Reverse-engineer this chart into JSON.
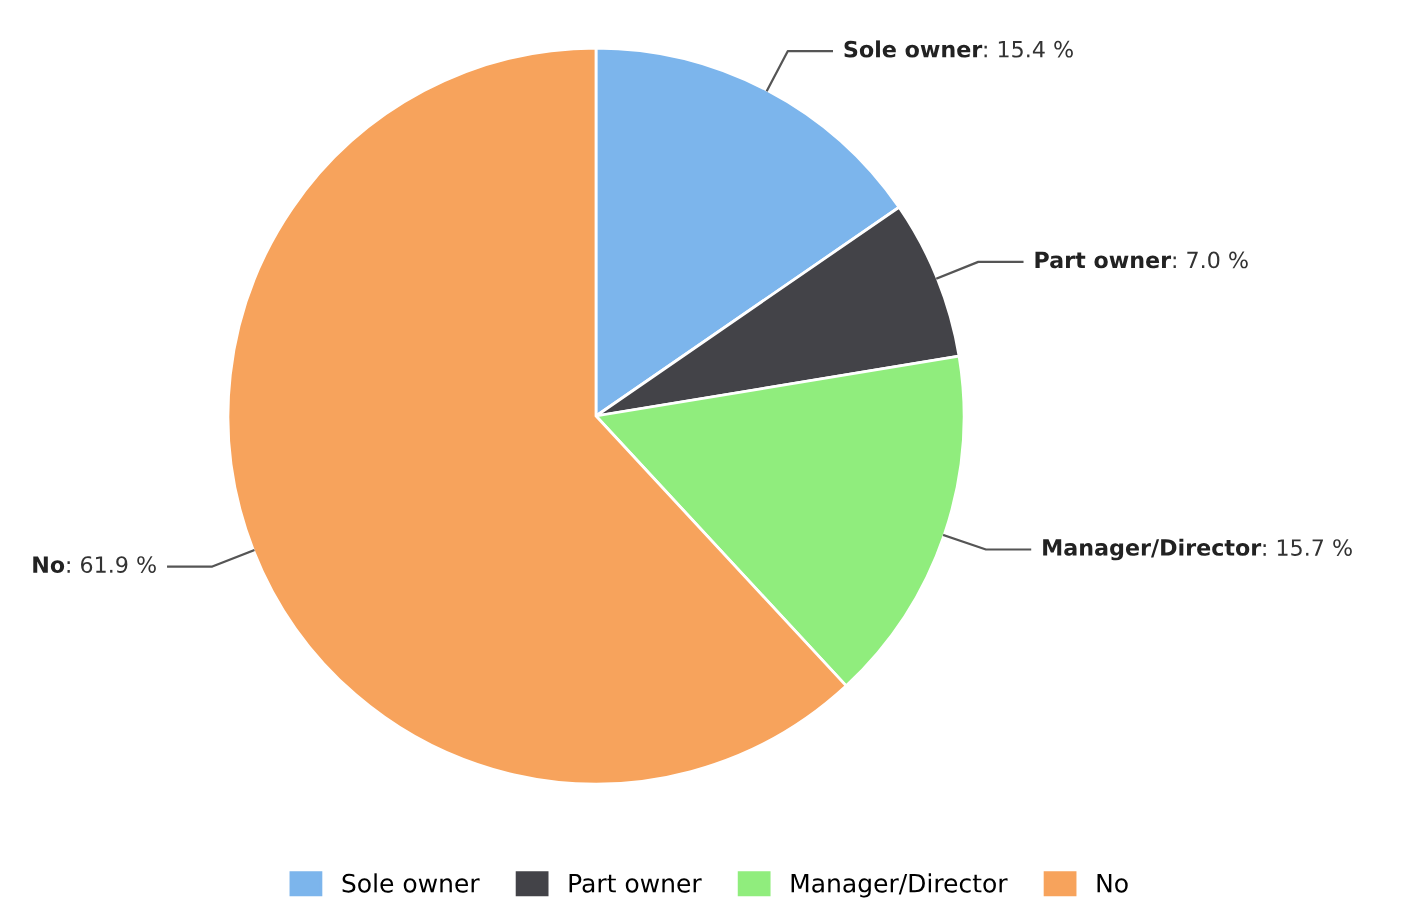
{
  "chart_data": {
    "type": "pie",
    "categories": [
      "Sole owner",
      "Part owner",
      "Manager/Director",
      "No"
    ],
    "values": [
      15.4,
      7.0,
      15.7,
      61.9
    ],
    "value_labels": [
      ": 15.4 %",
      ": 7.0 %",
      ": 15.7 %",
      ": 61.9 %"
    ],
    "colors": [
      "#7cb5ec",
      "#434348",
      "#90ed7d",
      "#f7a35c"
    ],
    "legend": "bottom"
  }
}
